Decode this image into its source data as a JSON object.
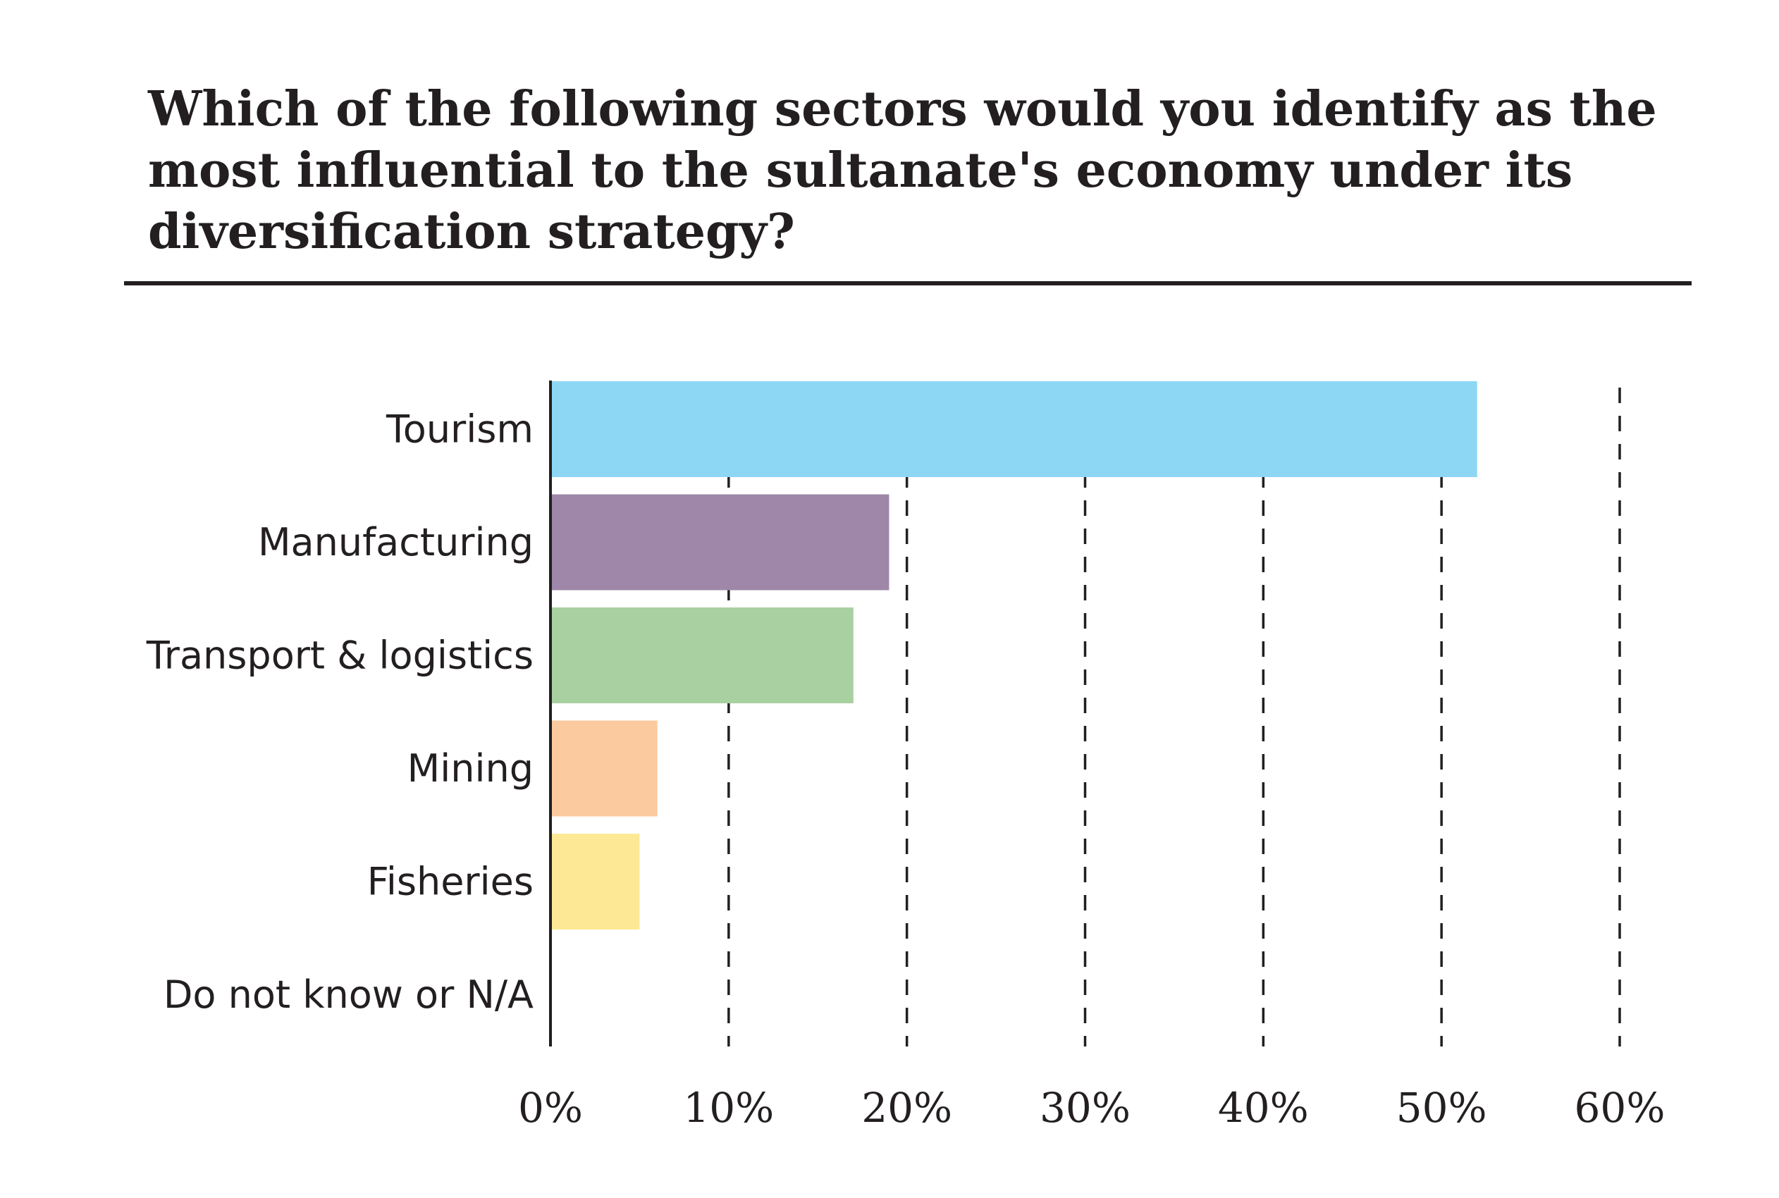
{
  "chart_data": {
    "type": "bar",
    "orientation": "horizontal",
    "title": "Which of the following sectors would you identify as the most influential to the sultanate's economy under its diversification strategy?",
    "categories": [
      "Tourism",
      "Manufacturing",
      "Transport & logistics",
      "Mining",
      "Fisheries",
      "Do not know or N/A"
    ],
    "values": [
      52,
      19,
      17,
      6,
      5,
      0
    ],
    "colors": [
      "#8dd7f5",
      "#9e87a9",
      "#a8d0a0",
      "#fcca9f",
      "#fde995",
      "#ffffff"
    ],
    "xlim": [
      0,
      60
    ],
    "xticks": [
      0,
      10,
      20,
      30,
      40,
      50,
      60
    ],
    "tick_labels": [
      "0%",
      "10%",
      "20%",
      "30%",
      "40%",
      "50%",
      "60%"
    ],
    "grid": "vertical dashed",
    "xlabel": "",
    "ylabel": ""
  }
}
